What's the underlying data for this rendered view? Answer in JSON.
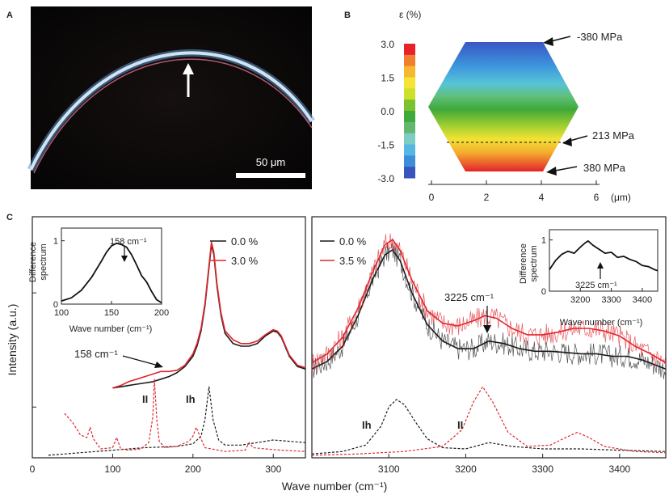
{
  "panels": {
    "a": "A",
    "b": "B",
    "c": "C"
  },
  "panel_a": {
    "scale_bar_label": "50 μm",
    "colors": {
      "background": "#0a0808",
      "fiber_outer": "#7fb3e0",
      "fiber_mid": "#d8e8f4",
      "fiber_inner": "#e37a8a"
    }
  },
  "panel_b": {
    "colorbar_title": "ε (%)",
    "colorbar_ticks": [
      "3.0",
      "1.5",
      "0.0",
      "-1.5",
      "-3.0"
    ],
    "colorbar_colors": [
      "#e8222a",
      "#f08030",
      "#f6b830",
      "#f4e438",
      "#cde02c",
      "#7cc12e",
      "#3fa93a",
      "#62b86e",
      "#7ecdc4",
      "#58b7e2",
      "#3c8ed8",
      "#3855bd"
    ],
    "x_ticks": [
      "0",
      "2",
      "4",
      "6"
    ],
    "x_unit": "(μm)",
    "stress_labels": [
      "-380 MPa",
      "213 MPa",
      "380 MPa"
    ]
  },
  "chart_data": [
    {
      "type": "line",
      "title": "",
      "xlabel": "Wave number (cm⁻¹)",
      "ylabel": "Intensity (a.u.)",
      "xlim": [
        0,
        340
      ],
      "ylim": [
        0,
        1.9
      ],
      "x_ticks": [
        0,
        100,
        200,
        300
      ],
      "legend": [
        "0.0 %",
        "3.0 %"
      ],
      "series": [
        {
          "name": "0.0 %",
          "color": "#1a1a1a",
          "x": [
            100,
            110,
            120,
            130,
            140,
            150,
            160,
            170,
            180,
            190,
            200,
            205,
            210,
            215,
            220,
            223,
            226,
            230,
            235,
            240,
            250,
            260,
            270,
            280,
            290,
            300,
            305,
            310,
            320,
            330,
            340
          ],
          "values": [
            0.55,
            0.56,
            0.57,
            0.58,
            0.59,
            0.6,
            0.62,
            0.64,
            0.67,
            0.72,
            0.8,
            0.88,
            1.0,
            1.2,
            1.5,
            1.68,
            1.6,
            1.35,
            1.12,
            0.98,
            0.9,
            0.88,
            0.88,
            0.9,
            0.96,
            1.0,
            0.99,
            0.95,
            0.8,
            0.72,
            0.7
          ]
        },
        {
          "name": "3.0 %",
          "color": "#e0262e",
          "x": [
            100,
            110,
            120,
            130,
            140,
            150,
            160,
            170,
            180,
            190,
            200,
            205,
            210,
            215,
            220,
            223,
            226,
            230,
            235,
            240,
            250,
            260,
            270,
            280,
            290,
            300,
            305,
            310,
            320,
            330,
            340
          ],
          "values": [
            0.55,
            0.57,
            0.6,
            0.62,
            0.64,
            0.66,
            0.68,
            0.68,
            0.69,
            0.73,
            0.82,
            0.9,
            1.02,
            1.22,
            1.52,
            1.7,
            1.62,
            1.37,
            1.14,
            1.0,
            0.93,
            0.9,
            0.9,
            0.92,
            0.97,
            1.01,
            1.0,
            0.96,
            0.81,
            0.73,
            0.71
          ]
        },
        {
          "name": "Ih",
          "color": "#1a1a1a",
          "dash": true,
          "x": [
            20,
            60,
            100,
            140,
            180,
            200,
            210,
            215,
            220,
            225,
            232,
            240,
            260,
            280,
            300,
            320,
            340
          ],
          "values": [
            0.02,
            0.04,
            0.06,
            0.08,
            0.09,
            0.11,
            0.17,
            0.3,
            0.56,
            0.3,
            0.14,
            0.1,
            0.1,
            0.12,
            0.14,
            0.13,
            0.12
          ]
        },
        {
          "name": "II",
          "color": "#e0262e",
          "dash": true,
          "x": [
            40,
            50,
            60,
            68,
            72,
            76,
            85,
            100,
            105,
            110,
            120,
            135,
            145,
            150,
            152,
            155,
            158,
            165,
            180,
            195,
            200,
            204,
            208,
            215,
            240,
            265,
            270,
            275,
            290,
            310,
            340
          ],
          "values": [
            0.35,
            0.28,
            0.18,
            0.16,
            0.24,
            0.15,
            0.07,
            0.08,
            0.16,
            0.07,
            0.06,
            0.07,
            0.12,
            0.32,
            0.62,
            0.3,
            0.13,
            0.08,
            0.09,
            0.13,
            0.17,
            0.24,
            0.18,
            0.08,
            0.05,
            0.06,
            0.12,
            0.08,
            0.07,
            0.06,
            0.05
          ]
        }
      ],
      "annotations": {
        "arrow_label": "158 cm⁻¹",
        "ih_label": "Ih",
        "ii_label": "II"
      },
      "inset": {
        "ylabel_line1": "Difference",
        "ylabel_line2": "spectrum",
        "xlabel": "Wave number (cm⁻¹)",
        "peak_label": "158 cm⁻¹",
        "xlim": [
          100,
          200
        ],
        "ylim": [
          0,
          1.2
        ],
        "x_ticks": [
          100,
          150,
          200
        ],
        "y_ticks": [
          0,
          1
        ],
        "x": [
          100,
          110,
          120,
          130,
          140,
          145,
          150,
          155,
          160,
          165,
          170,
          175,
          180,
          185,
          190,
          195,
          200
        ],
        "values": [
          0.05,
          0.1,
          0.22,
          0.42,
          0.68,
          0.82,
          0.92,
          0.96,
          0.94,
          0.9,
          0.78,
          0.62,
          0.45,
          0.35,
          0.2,
          0.07,
          0.02
        ]
      }
    },
    {
      "type": "line",
      "title": "",
      "xlabel": "Wave number (cm⁻¹)",
      "ylabel": "",
      "xlim": [
        3000,
        3460
      ],
      "ylim": [
        0,
        1.9
      ],
      "x_ticks": [
        3100,
        3200,
        3300,
        3400
      ],
      "legend": [
        "0.0 %",
        "3.5 %"
      ],
      "series": [
        {
          "name": "0.0 %",
          "color": "#1a1a1a",
          "x": [
            3000,
            3020,
            3040,
            3060,
            3080,
            3095,
            3105,
            3115,
            3130,
            3150,
            3170,
            3190,
            3210,
            3230,
            3250,
            3270,
            3290,
            3310,
            3330,
            3350,
            3370,
            3390,
            3410,
            3430,
            3460
          ],
          "values": [
            0.7,
            0.76,
            0.88,
            1.12,
            1.42,
            1.6,
            1.64,
            1.55,
            1.3,
            1.05,
            0.92,
            0.86,
            0.86,
            0.92,
            0.9,
            0.86,
            0.84,
            0.84,
            0.83,
            0.82,
            0.82,
            0.8,
            0.8,
            0.77,
            0.7
          ]
        },
        {
          "name": "3.5 %",
          "color": "#e0262e",
          "x": [
            3000,
            3020,
            3040,
            3060,
            3080,
            3095,
            3105,
            3115,
            3130,
            3150,
            3170,
            3190,
            3210,
            3225,
            3240,
            3260,
            3280,
            3300,
            3320,
            3340,
            3360,
            3380,
            3400,
            3420,
            3440,
            3460
          ],
          "values": [
            0.75,
            0.82,
            0.95,
            1.18,
            1.48,
            1.68,
            1.72,
            1.63,
            1.4,
            1.16,
            1.06,
            1.04,
            1.08,
            1.12,
            1.1,
            1.02,
            0.97,
            0.97,
            0.99,
            1.02,
            1.02,
            1.0,
            0.96,
            0.88,
            0.82,
            0.75
          ]
        },
        {
          "name": "Ih",
          "color": "#1a1a1a",
          "dash": true,
          "x": [
            3000,
            3040,
            3070,
            3090,
            3100,
            3110,
            3120,
            3135,
            3150,
            3170,
            3200,
            3230,
            3260,
            3300,
            3350,
            3400,
            3460
          ],
          "values": [
            0.03,
            0.05,
            0.1,
            0.25,
            0.4,
            0.46,
            0.42,
            0.28,
            0.15,
            0.08,
            0.07,
            0.12,
            0.09,
            0.07,
            0.07,
            0.06,
            0.05
          ]
        },
        {
          "name": "II",
          "color": "#e0262e",
          "dash": true,
          "x": [
            3000,
            3060,
            3120,
            3170,
            3195,
            3210,
            3222,
            3235,
            3255,
            3280,
            3310,
            3330,
            3345,
            3360,
            3380,
            3420,
            3460
          ],
          "values": [
            0.02,
            0.03,
            0.05,
            0.09,
            0.22,
            0.44,
            0.56,
            0.44,
            0.2,
            0.09,
            0.1,
            0.16,
            0.2,
            0.16,
            0.09,
            0.05,
            0.04
          ]
        }
      ],
      "annotations": {
        "arrow_label": "3225 cm⁻¹",
        "ih_label": "Ih",
        "ii_label": "II"
      },
      "inset": {
        "ylabel_line1": "Difference",
        "ylabel_line2": "spectrum",
        "xlabel": "Wave number (cm⁻¹)",
        "peak_label": "3225 cm⁻¹",
        "xlim": [
          3100,
          3450
        ],
        "ylim": [
          0,
          1.2
        ],
        "x_ticks": [
          3200,
          3300,
          3400
        ],
        "y_ticks": [
          0,
          1
        ],
        "x": [
          3100,
          3120,
          3140,
          3160,
          3180,
          3200,
          3215,
          3225,
          3240,
          3260,
          3280,
          3300,
          3320,
          3340,
          3360,
          3380,
          3400,
          3420,
          3440,
          3450
        ],
        "values": [
          0.42,
          0.6,
          0.72,
          0.78,
          0.74,
          0.86,
          0.94,
          0.98,
          0.9,
          0.82,
          0.74,
          0.76,
          0.66,
          0.68,
          0.62,
          0.58,
          0.5,
          0.48,
          0.42,
          0.4
        ]
      }
    }
  ]
}
